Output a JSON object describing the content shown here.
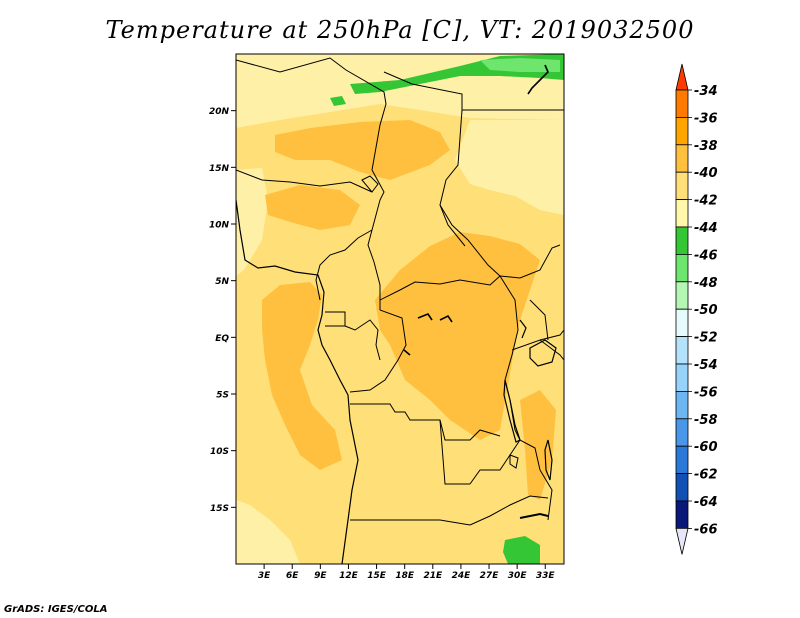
{
  "title": "Temperature at 250hPa [C], VT: 2019032500",
  "footer": "GrADS: IGES/COLA",
  "map": {
    "lon_range": [
      0,
      35
    ],
    "lat_range": [
      -20,
      25
    ],
    "lat_labels": [
      {
        "lat": 20,
        "text": "20N"
      },
      {
        "lat": 15,
        "text": "15N"
      },
      {
        "lat": 10,
        "text": "10N"
      },
      {
        "lat": 5,
        "text": "5N"
      },
      {
        "lat": 0,
        "text": "EQ"
      },
      {
        "lat": -5,
        "text": "5S"
      },
      {
        "lat": -10,
        "text": "10S"
      },
      {
        "lat": -15,
        "text": "15S"
      }
    ],
    "lon_labels": [
      {
        "lon": 3,
        "text": "3E"
      },
      {
        "lon": 6,
        "text": "6E"
      },
      {
        "lon": 9,
        "text": "9E"
      },
      {
        "lon": 12,
        "text": "12E"
      },
      {
        "lon": 15,
        "text": "15E"
      },
      {
        "lon": 18,
        "text": "18E"
      },
      {
        "lon": 21,
        "text": "21E"
      },
      {
        "lon": 24,
        "text": "24E"
      },
      {
        "lon": 27,
        "text": "27E"
      },
      {
        "lon": 30,
        "text": "30E"
      },
      {
        "lon": 33,
        "text": "33E"
      }
    ]
  },
  "colorbar": {
    "labels": [
      "-34",
      "-36",
      "-38",
      "-40",
      "-42",
      "-44",
      "-46",
      "-48",
      "-50",
      "-52",
      "-54",
      "-56",
      "-58",
      "-60",
      "-62",
      "-64",
      "-66"
    ],
    "colors": [
      "#ff3c00",
      "#ff7a00",
      "#ffa500",
      "#ffc040",
      "#ffe078",
      "#fff8aa",
      "#34c634",
      "#6ee66e",
      "#b4f6b4",
      "#e6fcfc",
      "#b4e2fa",
      "#96d2fa",
      "#6cb6f2",
      "#4a96e8",
      "#2a78d8",
      "#1250b4",
      "#0a1878",
      "#e6e6f8"
    ]
  }
}
